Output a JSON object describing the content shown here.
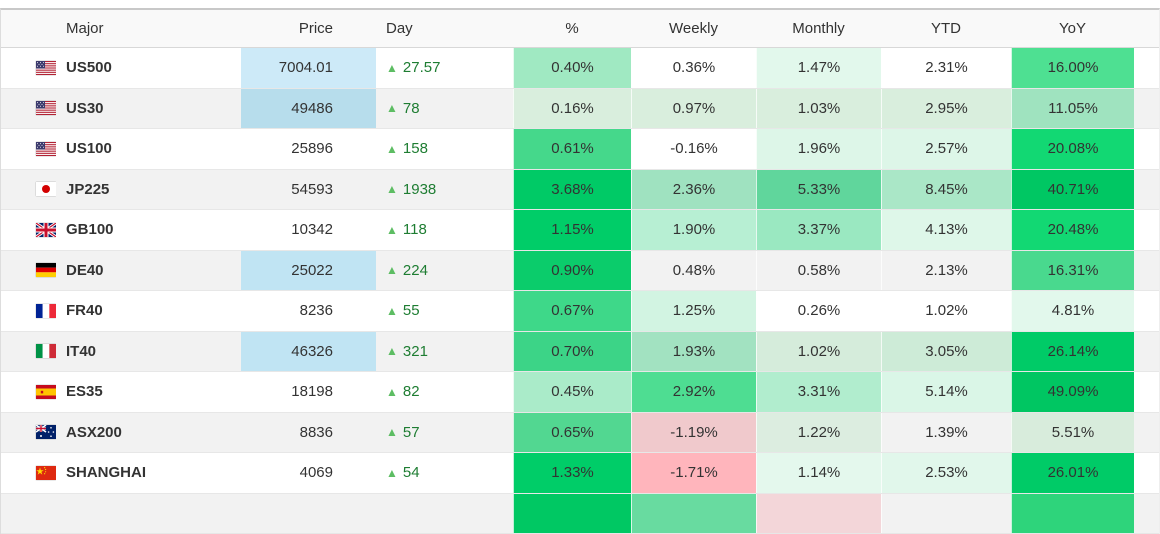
{
  "header": {
    "columns": [
      "Major",
      "Price",
      "Day",
      "%",
      "Weekly",
      "Monthly",
      "YTD",
      "YoY"
    ]
  },
  "colors": {
    "price_flash_blue_light": "#cdeaf8",
    "price_flash_blue_dark": "#b7ddec",
    "day_up_text": "#1e7d32",
    "day_up_arrow": "#5dbd63",
    "row_alt_bg": "#f2f2f2",
    "strong_green": "#00ca66",
    "down_pink": "#ffb5bc"
  },
  "table": {
    "rows": [
      {
        "flag": "us",
        "symbol": "US500",
        "price": "7004.01",
        "price_bg": "#cdeaf8",
        "day_arrow": "▲",
        "day_change": "27.57",
        "percent": {
          "value": "0.40%",
          "bg": "#a0e9c2"
        },
        "weekly": {
          "value": "0.36%",
          "bg": null
        },
        "monthly": {
          "value": "1.47%",
          "bg": "#e2f8ec"
        },
        "ytd": {
          "value": "2.31%",
          "bg": null
        },
        "yoy": {
          "value": "16.00%",
          "bg": "#4ee092"
        }
      },
      {
        "flag": "us",
        "symbol": "US30",
        "price": "49486",
        "price_bg": "#b7ddec",
        "day_arrow": "▲",
        "day_change": "78",
        "percent": {
          "value": "0.16%",
          "bg": "#d9eedd"
        },
        "weekly": {
          "value": "0.97%",
          "bg": "#d9eedd"
        },
        "monthly": {
          "value": "1.03%",
          "bg": "#d9eedd"
        },
        "ytd": {
          "value": "2.95%",
          "bg": "#d9eedd"
        },
        "yoy": {
          "value": "11.05%",
          "bg": "#9fe3bf"
        }
      },
      {
        "flag": "us",
        "symbol": "US100",
        "price": "25896",
        "price_bg": null,
        "day_arrow": "▲",
        "day_change": "158",
        "percent": {
          "value": "0.61%",
          "bg": "#45d88b"
        },
        "weekly": {
          "value": "-0.16%",
          "bg": null
        },
        "monthly": {
          "value": "1.96%",
          "bg": "#ddf6e8"
        },
        "ytd": {
          "value": "2.57%",
          "bg": "#ddf6e8"
        },
        "yoy": {
          "value": "20.08%",
          "bg": "#12d873"
        }
      },
      {
        "flag": "jp",
        "symbol": "JP225",
        "price": "54593",
        "price_bg": null,
        "day_arrow": "▲",
        "day_change": "1938",
        "percent": {
          "value": "3.68%",
          "bg": "#00ca66"
        },
        "weekly": {
          "value": "2.36%",
          "bg": "#9fe2c0"
        },
        "monthly": {
          "value": "5.33%",
          "bg": "#60d69c"
        },
        "ytd": {
          "value": "8.45%",
          "bg": "#aae7c7"
        },
        "yoy": {
          "value": "40.71%",
          "bg": "#00c763"
        }
      },
      {
        "flag": "gb",
        "symbol": "GB100",
        "price": "10342",
        "price_bg": null,
        "day_arrow": "▲",
        "day_change": "118",
        "percent": {
          "value": "1.15%",
          "bg": "#00cd68"
        },
        "weekly": {
          "value": "1.90%",
          "bg": "#b7efd3"
        },
        "monthly": {
          "value": "3.37%",
          "bg": "#9ae8c1"
        },
        "ytd": {
          "value": "4.13%",
          "bg": "#def7e9"
        },
        "yoy": {
          "value": "20.48%",
          "bg": "#12d873"
        }
      },
      {
        "flag": "de",
        "symbol": "DE40",
        "price": "25022",
        "price_bg": "#c0e4f3",
        "day_arrow": "▲",
        "day_change": "224",
        "percent": {
          "value": "0.90%",
          "bg": "#0bcc6b"
        },
        "weekly": {
          "value": "0.48%",
          "bg": null
        },
        "monthly": {
          "value": "0.58%",
          "bg": null
        },
        "ytd": {
          "value": "2.13%",
          "bg": null
        },
        "yoy": {
          "value": "16.31%",
          "bg": "#49d98e"
        }
      },
      {
        "flag": "fr",
        "symbol": "FR40",
        "price": "8236",
        "price_bg": null,
        "day_arrow": "▲",
        "day_change": "55",
        "percent": {
          "value": "0.67%",
          "bg": "#3ed889"
        },
        "weekly": {
          "value": "1.25%",
          "bg": "#d2f4e2"
        },
        "monthly": {
          "value": "0.26%",
          "bg": null
        },
        "ytd": {
          "value": "1.02%",
          "bg": null
        },
        "yoy": {
          "value": "4.81%",
          "bg": "#e2f8ec"
        }
      },
      {
        "flag": "it",
        "symbol": "IT40",
        "price": "46326",
        "price_bg": "#c0e4f3",
        "day_arrow": "▲",
        "day_change": "321",
        "percent": {
          "value": "0.70%",
          "bg": "#3cd487"
        },
        "weekly": {
          "value": "1.93%",
          "bg": "#a2e2c1"
        },
        "monthly": {
          "value": "1.02%",
          "bg": "#d5ecdb"
        },
        "ytd": {
          "value": "3.05%",
          "bg": "#cdebd7"
        },
        "yoy": {
          "value": "26.14%",
          "bg": "#00cb67"
        }
      },
      {
        "flag": "es",
        "symbol": "ES35",
        "price": "18198",
        "price_bg": null,
        "day_arrow": "▲",
        "day_change": "82",
        "percent": {
          "value": "0.45%",
          "bg": "#aaebc9"
        },
        "weekly": {
          "value": "2.92%",
          "bg": "#4edd92"
        },
        "monthly": {
          "value": "3.31%",
          "bg": "#b1edce"
        },
        "ytd": {
          "value": "5.14%",
          "bg": "#daf6e7"
        },
        "yoy": {
          "value": "49.09%",
          "bg": "#00c662"
        }
      },
      {
        "flag": "au",
        "symbol": "ASX200",
        "price": "8836",
        "price_bg": null,
        "day_arrow": "▲",
        "day_change": "57",
        "percent": {
          "value": "0.65%",
          "bg": "#52d791"
        },
        "weekly": {
          "value": "-1.19%",
          "bg": "#f0c9cc"
        },
        "monthly": {
          "value": "1.22%",
          "bg": "#dcede0"
        },
        "ytd": {
          "value": "1.39%",
          "bg": null
        },
        "yoy": {
          "value": "5.51%",
          "bg": "#d8ecdc"
        }
      },
      {
        "flag": "cn",
        "symbol": "SHANGHAI",
        "price": "4069",
        "price_bg": null,
        "day_arrow": "▲",
        "day_change": "54",
        "percent": {
          "value": "1.33%",
          "bg": "#00cd68"
        },
        "weekly": {
          "value": "-1.71%",
          "bg": "#ffb5bc"
        },
        "monthly": {
          "value": "1.14%",
          "bg": "#e4f8ed"
        },
        "ytd": {
          "value": "2.53%",
          "bg": "#e1f7eb"
        },
        "yoy": {
          "value": "26.01%",
          "bg": "#00cb67"
        }
      },
      {
        "flag": null,
        "symbol": "",
        "price": "",
        "price_bg": null,
        "day_arrow": "",
        "day_change": "",
        "partial": true,
        "percent": {
          "value": "",
          "bg": "#00c863"
        },
        "weekly": {
          "value": "",
          "bg": "#68dba0"
        },
        "monthly": {
          "value": "",
          "bg": "#f3d6d9"
        },
        "ytd": {
          "value": "",
          "bg": null
        },
        "yoy": {
          "value": "",
          "bg": "#2ed47b"
        }
      }
    ]
  }
}
